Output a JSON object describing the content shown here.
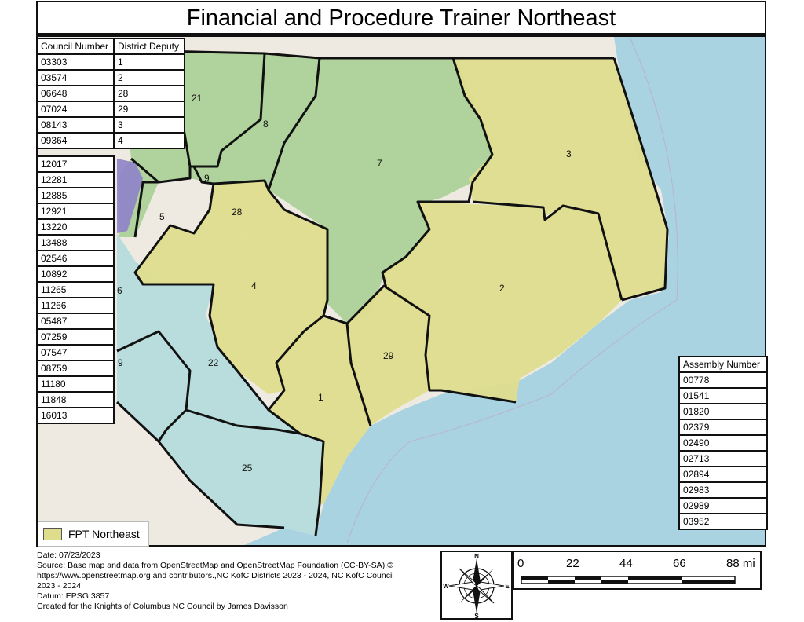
{
  "title": "Financial and Procedure Trainer Northeast",
  "council_table": {
    "col1_header": "Council Number",
    "col2_header": "District Deputy",
    "rows": [
      {
        "council": "03303",
        "deputy": "1"
      },
      {
        "council": "03574",
        "deputy": "2"
      },
      {
        "council": "06648",
        "deputy": "28"
      },
      {
        "council": "07024",
        "deputy": "29"
      },
      {
        "council": "08143",
        "deputy": "3"
      },
      {
        "council": "09364",
        "deputy": "4"
      }
    ],
    "extra_councils": [
      "12017",
      "12281",
      "12885",
      "12921",
      "13220",
      "13488",
      "02546",
      "10892",
      "11265",
      "11266",
      "05487",
      "07259",
      "07547",
      "08759",
      "11180",
      "11848",
      "16013"
    ]
  },
  "assembly_table": {
    "header": "Assembly Number",
    "rows": [
      "00778",
      "01541",
      "01820",
      "02379",
      "02490",
      "02713",
      "02894",
      "02983",
      "02989",
      "03952"
    ]
  },
  "district_labels": {
    "d21": "21",
    "d8": "8",
    "d7": "7",
    "d3": "3",
    "d9": "9",
    "d28": "28",
    "d5": "5",
    "d4": "4",
    "d2": "2",
    "d29": "29",
    "d22": "22",
    "d1": "1",
    "d25": "25",
    "d6": "6",
    "d19": "9"
  },
  "legend": {
    "label": "FPT Northeast",
    "color": "#dedd8d"
  },
  "credits": {
    "date": "Date: 07/23/2023",
    "source": "Source: Base map and data from OpenStreetMap and OpenStreetMap Foundation (CC-BY-SA).©\nhttps://www.openstreetmap.org and contributors.,NC KofC Districts 2023 - 2024, NC KofC Council\n2023 - 2024",
    "datum": "Datum: EPSG:3857",
    "created": "Created for the Knights of Columbus NC Council by James Davisson"
  },
  "compass": {
    "n": "N",
    "s": "S",
    "e": "E",
    "w": "W"
  },
  "scale": {
    "ticks": [
      "0",
      "22",
      "44",
      "66",
      "88 mi"
    ]
  },
  "colors": {
    "ocean": "#a9d3e0",
    "land": "#eeeae2",
    "fpt": "#dedd8d",
    "green": "#a9cf95",
    "blue": "#b3dcdc",
    "purple": "#8f82c9"
  }
}
